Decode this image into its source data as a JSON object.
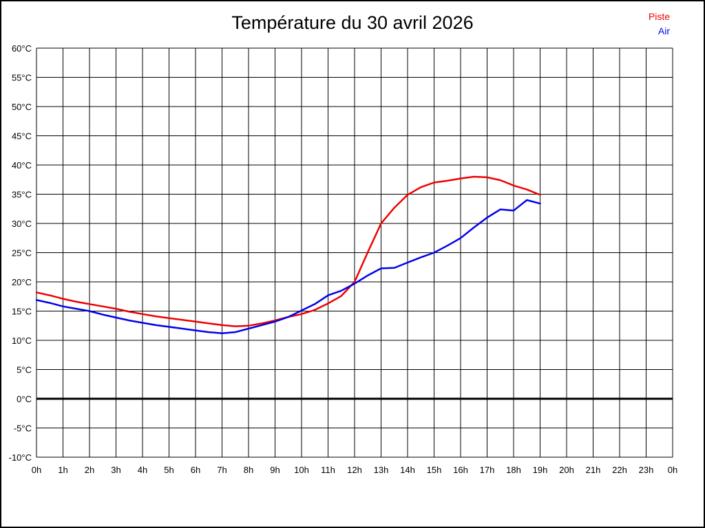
{
  "page": {
    "background": "#ffffff",
    "border_color": "#000000"
  },
  "chart_data": {
    "type": "line",
    "title": "Température du 30 avril 2026",
    "xlabel": "",
    "ylabel": "",
    "xlim": [
      0,
      24
    ],
    "ylim": [
      -10,
      60
    ],
    "grid": true,
    "grid_color": "#000000",
    "legend_position": "top-right",
    "x_tick_values": [
      0,
      1,
      2,
      3,
      4,
      5,
      6,
      7,
      8,
      9,
      10,
      11,
      12,
      13,
      14,
      15,
      16,
      17,
      18,
      19,
      20,
      21,
      22,
      23,
      24
    ],
    "x_tick_labels": [
      "0h",
      "1h",
      "2h",
      "3h",
      "4h",
      "5h",
      "6h",
      "7h",
      "8h",
      "9h",
      "10h",
      "11h",
      "12h",
      "13h",
      "14h",
      "15h",
      "16h",
      "17h",
      "18h",
      "19h",
      "20h",
      "21h",
      "22h",
      "23h",
      "0h"
    ],
    "y_tick_values": [
      60,
      55,
      50,
      45,
      40,
      35,
      30,
      25,
      20,
      15,
      10,
      5,
      0,
      -5,
      -10
    ],
    "y_tick_labels": [
      "60°C",
      "55°C",
      "50°C",
      "45°C",
      "40°C",
      "35°C",
      "30°C",
      "25°C",
      "20°C",
      "15°C",
      "10°C",
      "5°C",
      "0°C",
      "-5°C",
      "-10°C"
    ],
    "zero_line": {
      "value": 0,
      "color": "#000000"
    },
    "x": [
      0,
      0.5,
      1,
      1.5,
      2,
      2.5,
      3,
      3.5,
      4,
      4.5,
      5,
      5.5,
      6,
      6.5,
      7,
      7.5,
      8,
      8.5,
      9,
      9.5,
      10,
      10.5,
      11,
      11.5,
      12,
      12.5,
      13,
      13.5,
      14,
      14.5,
      15,
      15.5,
      16,
      16.5,
      17,
      17.5,
      18,
      18.5,
      19
    ],
    "series": [
      {
        "name": "Piste",
        "color": "#ee0000",
        "values": [
          18.2,
          17.7,
          17.1,
          16.6,
          16.2,
          15.8,
          15.4,
          14.9,
          14.5,
          14.1,
          13.8,
          13.5,
          13.2,
          12.9,
          12.6,
          12.4,
          12.5,
          12.9,
          13.4,
          14.0,
          14.5,
          15.2,
          16.3,
          17.6,
          20.0,
          25.1,
          30.0,
          32.7,
          34.9,
          36.2,
          37.0,
          37.3,
          37.7,
          38.0,
          37.9,
          37.4,
          36.5,
          35.8,
          34.9
        ]
      },
      {
        "name": "Air",
        "color": "#0000ee",
        "values": [
          16.9,
          16.4,
          15.8,
          15.4,
          15.0,
          14.4,
          13.9,
          13.4,
          13.0,
          12.6,
          12.3,
          12.0,
          11.7,
          11.4,
          11.2,
          11.4,
          12.0,
          12.6,
          13.2,
          14.0,
          15.1,
          16.2,
          17.7,
          18.5,
          19.7,
          21.1,
          22.3,
          22.4,
          23.3,
          24.2,
          25.0,
          26.2,
          27.5,
          29.3,
          31.0,
          32.4,
          32.2,
          34.0,
          33.4
        ]
      }
    ]
  }
}
